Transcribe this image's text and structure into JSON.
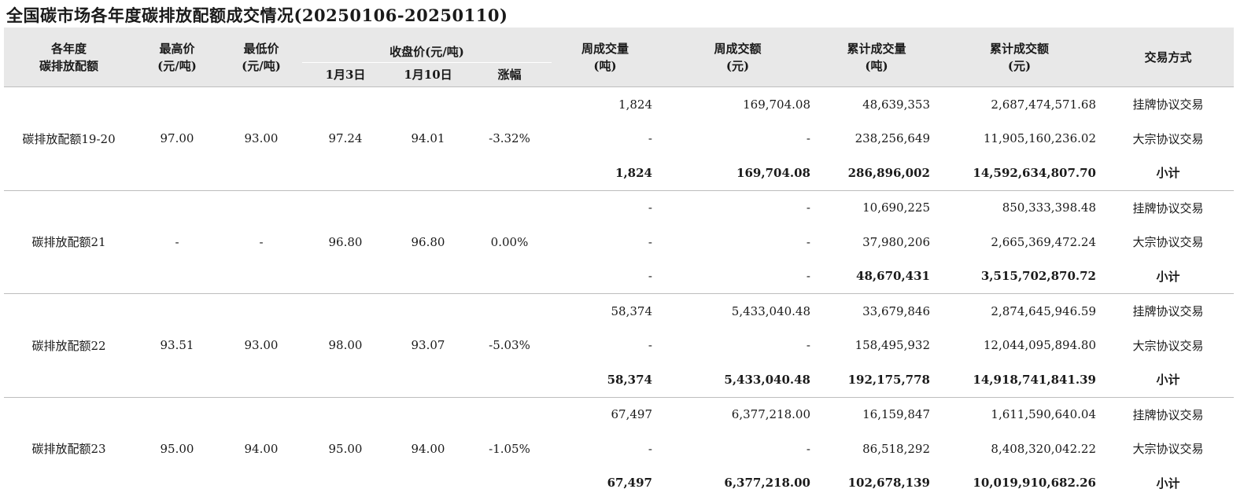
{
  "title": "全国碳市场各年度碳排放配额成交情况(20250106-20250110)",
  "headers": {
    "product_l1": "各年度",
    "product_l2": "碳排放配额",
    "max_l1": "最高价",
    "max_l2": "(元/吨)",
    "min_l1": "最低价",
    "min_l2": "(元/吨)",
    "close": "收盘价(元/吨)",
    "close_jan3": "1月3日",
    "close_jan10": "1月10日",
    "change": "涨幅",
    "week_vol_l1": "周成交量",
    "week_vol_l2": "(吨)",
    "week_amt_l1": "周成交额",
    "week_amt_l2": "(元)",
    "cum_vol_l1": "累计成交量",
    "cum_vol_l2": "(吨)",
    "cum_amt_l1": "累计成交额",
    "cum_amt_l2": "(元)",
    "method": "交易方式"
  },
  "groups": [
    {
      "name": "碳排放配额19-20",
      "max": "97.00",
      "min": "93.00",
      "jan3": "97.24",
      "jan10": "94.01",
      "change": "-3.32%",
      "rows": [
        {
          "week_vol": "1,824",
          "week_amt": "169,704.08",
          "cum_vol": "48,639,353",
          "cum_amt": "2,687,474,571.68",
          "method": "挂牌协议交易"
        },
        {
          "week_vol": "-",
          "week_amt": "-",
          "cum_vol": "238,256,649",
          "cum_amt": "11,905,160,236.02",
          "method": "大宗协议交易"
        },
        {
          "week_vol": "1,824",
          "week_amt": "169,704.08",
          "cum_vol": "286,896,002",
          "cum_amt": "14,592,634,807.70",
          "method": "小计"
        }
      ]
    },
    {
      "name": "碳排放配额21",
      "max": "-",
      "min": "-",
      "jan3": "96.80",
      "jan10": "96.80",
      "change": "0.00%",
      "rows": [
        {
          "week_vol": "-",
          "week_amt": "-",
          "cum_vol": "10,690,225",
          "cum_amt": "850,333,398.48",
          "method": "挂牌协议交易"
        },
        {
          "week_vol": "-",
          "week_amt": "-",
          "cum_vol": "37,980,206",
          "cum_amt": "2,665,369,472.24",
          "method": "大宗协议交易"
        },
        {
          "week_vol": "-",
          "week_amt": "-",
          "cum_vol": "48,670,431",
          "cum_amt": "3,515,702,870.72",
          "method": "小计"
        }
      ]
    },
    {
      "name": "碳排放配额22",
      "max": "93.51",
      "min": "93.00",
      "jan3": "98.00",
      "jan10": "93.07",
      "change": "-5.03%",
      "rows": [
        {
          "week_vol": "58,374",
          "week_amt": "5,433,040.48",
          "cum_vol": "33,679,846",
          "cum_amt": "2,874,645,946.59",
          "method": "挂牌协议交易"
        },
        {
          "week_vol": "-",
          "week_amt": "-",
          "cum_vol": "158,495,932",
          "cum_amt": "12,044,095,894.80",
          "method": "大宗协议交易"
        },
        {
          "week_vol": "58,374",
          "week_amt": "5,433,040.48",
          "cum_vol": "192,175,778",
          "cum_amt": "14,918,741,841.39",
          "method": "小计"
        }
      ]
    },
    {
      "name": "碳排放配额23",
      "max": "95.00",
      "min": "94.00",
      "jan3": "95.00",
      "jan10": "94.00",
      "change": "-1.05%",
      "rows": [
        {
          "week_vol": "67,497",
          "week_amt": "6,377,218.00",
          "cum_vol": "16,159,847",
          "cum_amt": "1,611,590,640.04",
          "method": "挂牌协议交易"
        },
        {
          "week_vol": "-",
          "week_amt": "-",
          "cum_vol": "86,518,292",
          "cum_amt": "8,408,320,042.22",
          "method": "大宗协议交易"
        },
        {
          "week_vol": "67,497",
          "week_amt": "6,377,218.00",
          "cum_vol": "102,678,139",
          "cum_amt": "10,019,910,682.26",
          "method": "小计"
        }
      ]
    }
  ]
}
